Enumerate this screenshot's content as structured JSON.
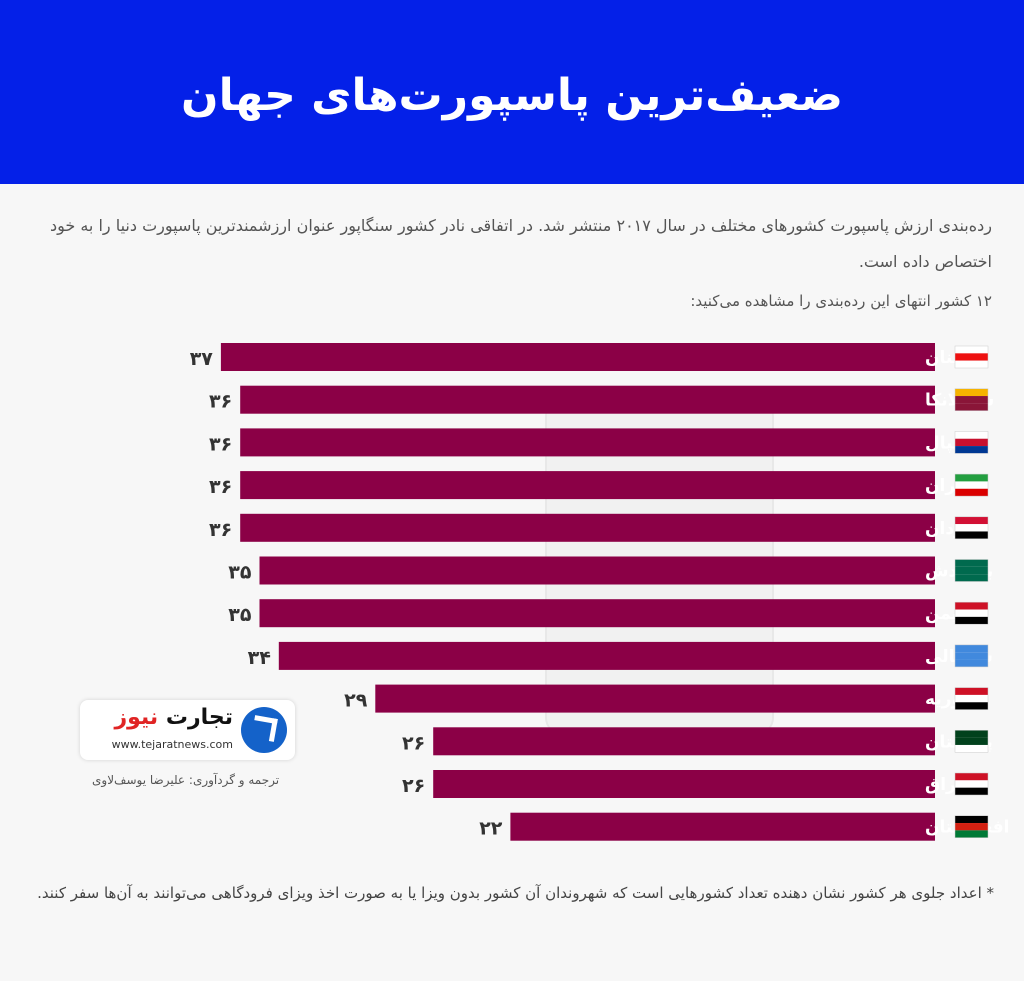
{
  "header": {
    "title": "ضعیف‌ترین پاسپورت‌های جهان"
  },
  "intro": {
    "text": "رده‌بندی ارزش پاسپورت کشورهای مختلف در سال ۲۰۱۷ منتشر شد. در اتفاقی نادر کشور سنگاپور عنوان ارزشمندترین پاسپورت دنیا را به خود اختصاص داده است.",
    "subhead": "۱۲ کشور انتهای این رده‌بندی را مشاهده می‌کنید:"
  },
  "chart_data": {
    "type": "bar",
    "orientation": "horizontal",
    "categories": [
      "لبنان",
      "سریلانکا",
      "نپال",
      "ایران",
      "سودان",
      "بنگلادش",
      "یمن",
      "سومالی",
      "سوریه",
      "پاکستان",
      "عراق",
      "افغانستان"
    ],
    "values": [
      37,
      36,
      36,
      36,
      36,
      35,
      35,
      34,
      29,
      26,
      26,
      22
    ],
    "value_labels": [
      "۳۷",
      "۳۶",
      "۳۶",
      "۳۶",
      "۳۶",
      "۳۵",
      "۳۵",
      "۳۴",
      "۲۹",
      "۲۶",
      "۲۶",
      "۲۲"
    ],
    "direction": "right-to-left",
    "bar_color": "#8b0046"
  },
  "logo": {
    "name_main": "تجارت",
    "name_accent": "نیوز",
    "url": "www.tejaratnews.com"
  },
  "credit": "ترجمه و گردآوری: علیرضا یوسف‌لاوی",
  "footnote": "* اعداد جلوی هر کشور نشان دهنده تعداد کشورهایی است که شهروندان آن کشور بدون ویزا یا به صورت اخذ ویزای فرودگاهی می‌توانند به آن‌ها سفر کنند."
}
